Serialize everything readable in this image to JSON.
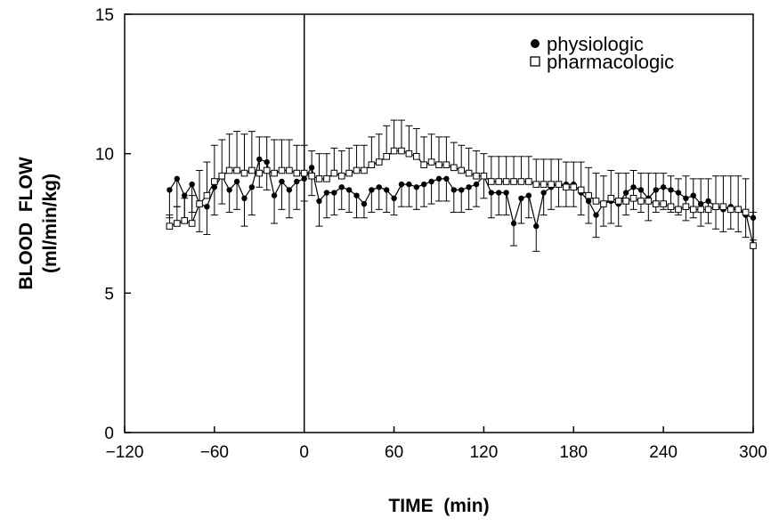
{
  "chart_data": {
    "type": "line",
    "title": "",
    "xlabel": "TIME  (min)",
    "ylabel_line1": "BLOOD  FLOW",
    "ylabel_line2": "(ml/min/kg)",
    "xlim": [
      -120,
      300
    ],
    "ylim": [
      0,
      15
    ],
    "xticks": [
      -120,
      -60,
      0,
      60,
      120,
      180,
      240,
      300
    ],
    "xtick_labels": [
      "−120",
      "−60",
      "0",
      "60",
      "120",
      "180",
      "240",
      "300"
    ],
    "yticks": [
      0,
      5,
      10,
      15
    ],
    "ytick_labels": [
      "0",
      "5",
      "10",
      "15"
    ],
    "grid": false,
    "vertical_reference_x": 0,
    "legend_position": "top-right",
    "series": [
      {
        "name": "physiologic",
        "marker": "filled-circle",
        "error_direction": "down",
        "x": [
          -90,
          -85,
          -80,
          -75,
          -70,
          -65,
          -60,
          -55,
          -50,
          -45,
          -40,
          -35,
          -30,
          -25,
          -20,
          -15,
          -10,
          -5,
          0,
          5,
          10,
          15,
          20,
          25,
          30,
          35,
          40,
          45,
          50,
          55,
          60,
          65,
          70,
          75,
          80,
          85,
          90,
          95,
          100,
          105,
          110,
          115,
          120,
          125,
          130,
          135,
          140,
          145,
          150,
          155,
          160,
          165,
          170,
          175,
          180,
          185,
          190,
          195,
          200,
          205,
          210,
          215,
          220,
          225,
          230,
          235,
          240,
          245,
          250,
          255,
          260,
          265,
          270,
          275,
          280,
          285,
          290,
          295,
          300
        ],
        "values": [
          8.7,
          9.1,
          8.5,
          8.9,
          8.2,
          8.1,
          8.8,
          9.2,
          8.7,
          9.0,
          8.4,
          8.8,
          9.8,
          9.7,
          8.5,
          9.0,
          8.7,
          9.0,
          9.1,
          9.5,
          8.3,
          8.6,
          8.6,
          8.8,
          8.7,
          8.5,
          8.2,
          8.7,
          8.8,
          8.7,
          8.4,
          8.9,
          8.9,
          8.8,
          8.9,
          9.0,
          9.1,
          9.1,
          8.7,
          8.7,
          8.8,
          8.9,
          9.2,
          8.6,
          8.6,
          8.6,
          7.5,
          8.4,
          8.5,
          7.4,
          8.6,
          8.8,
          8.9,
          8.9,
          8.9,
          8.6,
          8.3,
          7.8,
          8.2,
          8.3,
          8.2,
          8.6,
          8.8,
          8.7,
          8.4,
          8.7,
          8.8,
          8.7,
          8.6,
          8.4,
          8.5,
          8.2,
          8.3,
          8.1,
          8.0,
          8.1,
          8.0,
          7.8,
          7.7
        ],
        "error": [
          1.0,
          1.0,
          1.0,
          1.0,
          1.0,
          1.0,
          1.0,
          1.0,
          0.8,
          1.0,
          1.0,
          1.0,
          1.0,
          1.0,
          1.0,
          1.0,
          1.0,
          1.0,
          0.8,
          1.0,
          0.9,
          0.9,
          0.8,
          0.8,
          0.8,
          0.8,
          0.5,
          0.8,
          0.8,
          0.8,
          0.6,
          0.8,
          0.8,
          0.8,
          0.8,
          0.8,
          0.8,
          0.8,
          0.8,
          0.8,
          0.8,
          0.8,
          0.8,
          0.9,
          0.8,
          0.8,
          0.8,
          0.9,
          0.8,
          0.9,
          0.8,
          0.8,
          0.8,
          0.8,
          0.8,
          0.8,
          0.8,
          0.8,
          0.8,
          0.8,
          0.8,
          0.8,
          0.8,
          0.8,
          0.8,
          0.8,
          0.8,
          0.8,
          0.8,
          0.8,
          0.8,
          0.8,
          0.8,
          0.8,
          0.8,
          0.8,
          0.8,
          0.8,
          0.8
        ]
      },
      {
        "name": "pharmacologic",
        "marker": "open-square",
        "error_direction": "up",
        "x": [
          -90,
          -85,
          -80,
          -75,
          -70,
          -65,
          -60,
          -55,
          -50,
          -45,
          -40,
          -35,
          -30,
          -25,
          -20,
          -15,
          -10,
          -5,
          0,
          5,
          10,
          15,
          20,
          25,
          30,
          35,
          40,
          45,
          50,
          55,
          60,
          65,
          70,
          75,
          80,
          85,
          90,
          95,
          100,
          105,
          110,
          115,
          120,
          125,
          130,
          135,
          140,
          145,
          150,
          155,
          160,
          165,
          170,
          175,
          180,
          185,
          190,
          195,
          200,
          205,
          210,
          215,
          220,
          225,
          230,
          235,
          240,
          245,
          250,
          255,
          260,
          265,
          270,
          275,
          280,
          285,
          290,
          295,
          300
        ],
        "values": [
          7.4,
          7.5,
          7.6,
          7.5,
          8.2,
          8.5,
          9.0,
          9.2,
          9.4,
          9.4,
          9.3,
          9.4,
          9.3,
          9.4,
          9.3,
          9.4,
          9.4,
          9.3,
          9.3,
          9.2,
          9.1,
          9.1,
          9.3,
          9.2,
          9.3,
          9.4,
          9.4,
          9.6,
          9.7,
          9.9,
          10.1,
          10.1,
          10.0,
          9.9,
          9.6,
          9.7,
          9.6,
          9.6,
          9.5,
          9.4,
          9.3,
          9.2,
          9.2,
          9.0,
          9.0,
          9.0,
          9.0,
          9.0,
          9.0,
          8.9,
          8.9,
          8.9,
          8.9,
          8.8,
          8.8,
          8.7,
          8.5,
          8.3,
          8.2,
          8.4,
          8.3,
          8.3,
          8.4,
          8.3,
          8.3,
          8.2,
          8.2,
          8.1,
          8.0,
          8.1,
          8.0,
          8.0,
          8.0,
          8.1,
          8.1,
          8.0,
          8.0,
          7.9,
          6.7
        ],
        "error": [
          0.4,
          0.6,
          0.8,
          1.0,
          1.2,
          1.2,
          1.3,
          1.3,
          1.3,
          1.4,
          1.4,
          1.4,
          1.3,
          1.2,
          1.2,
          1.1,
          1.1,
          1.0,
          1.0,
          0.9,
          0.9,
          0.9,
          0.9,
          0.9,
          0.9,
          0.9,
          0.9,
          1.0,
          1.0,
          1.1,
          1.1,
          1.1,
          1.0,
          1.0,
          1.0,
          1.0,
          1.0,
          1.0,
          0.9,
          0.9,
          0.9,
          0.9,
          0.8,
          0.9,
          0.9,
          0.9,
          0.9,
          0.9,
          0.9,
          0.9,
          0.9,
          0.9,
          0.9,
          0.9,
          0.9,
          1.0,
          1.0,
          1.0,
          1.0,
          1.0,
          1.0,
          1.0,
          1.0,
          1.0,
          1.0,
          1.1,
          1.1,
          1.1,
          1.1,
          1.1,
          1.1,
          1.1,
          1.1,
          1.1,
          1.1,
          1.2,
          1.2,
          1.2,
          1.2
        ]
      }
    ]
  }
}
